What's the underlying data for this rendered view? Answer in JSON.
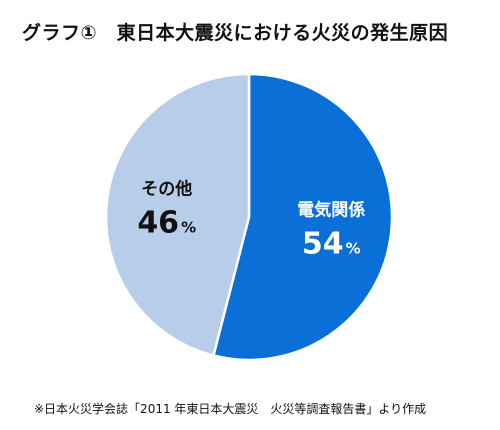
{
  "title": "グラフ①　東日本大震災における火災の発生原因",
  "source_note": "※日本火災学会誌「2011 年東日本大震災　火災等調査報告書」より作成",
  "chart_data": {
    "type": "pie",
    "title": "グラフ①　東日本大震災における火災の発生原因",
    "slices": [
      {
        "label": "電気関係",
        "value": 54,
        "value_text": "54",
        "unit": "%",
        "color": "#0a6fd6",
        "text_color": "#ffffff"
      },
      {
        "label": "その他",
        "value": 46,
        "value_text": "46",
        "unit": "%",
        "color": "#b8cdea",
        "text_color": "#111111"
      }
    ],
    "start_angle_deg": 0,
    "direction": "clockwise",
    "separator_color": "#ffffff"
  }
}
